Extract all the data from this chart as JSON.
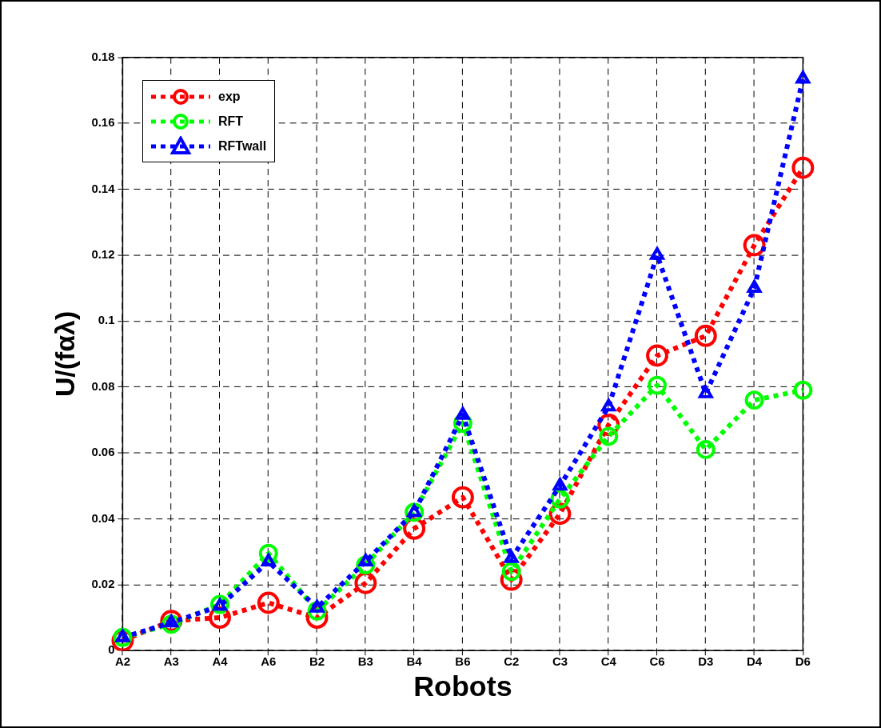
{
  "chart_data": {
    "type": "line",
    "xlabel": "Robots",
    "ylabel": "U/(fαλ)",
    "categories": [
      "A2",
      "A3",
      "A4",
      "A6",
      "B2",
      "B3",
      "B4",
      "B6",
      "C2",
      "C3",
      "C4",
      "C6",
      "D3",
      "D4",
      "D6"
    ],
    "ylim": [
      0,
      0.18
    ],
    "yticks": [
      0,
      0.02,
      0.04,
      0.06,
      0.08,
      0.1,
      0.12,
      0.14,
      0.16,
      0.18
    ],
    "grid": true,
    "legend": "top left",
    "line_style": "dotted",
    "series": [
      {
        "name": "exp",
        "color": "#ff0000",
        "marker": "circle",
        "values": [
          0.003,
          0.009,
          0.01,
          0.0145,
          0.01,
          0.0205,
          0.037,
          0.0465,
          0.0215,
          0.0415,
          0.0685,
          0.0895,
          0.0955,
          0.123,
          0.1465
        ]
      },
      {
        "name": "RFT",
        "color": "#00ff00",
        "marker": "circle",
        "values": [
          0.004,
          0.008,
          0.014,
          0.0295,
          0.012,
          0.026,
          0.042,
          0.069,
          0.024,
          0.046,
          0.065,
          0.0805,
          0.061,
          0.076,
          0.079
        ]
      },
      {
        "name": "RFTwall",
        "color": "#0000ff",
        "marker": "triangle",
        "values": [
          0.004,
          0.0085,
          0.0135,
          0.027,
          0.013,
          0.027,
          0.042,
          0.0715,
          0.028,
          0.05,
          0.074,
          0.12,
          0.078,
          0.11,
          0.1735
        ]
      }
    ]
  }
}
